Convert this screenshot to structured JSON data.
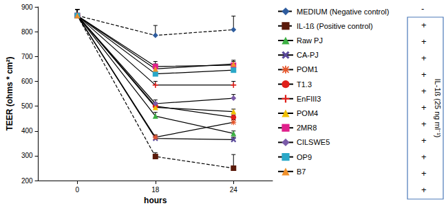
{
  "chart_data": {
    "type": "line",
    "x_label": "hours",
    "y_label": "TEER (ohms * cm²)",
    "categories": [
      0,
      18,
      24
    ],
    "ylim": [
      200,
      900
    ],
    "yticks": [
      200,
      300,
      400,
      500,
      600,
      700,
      800,
      900
    ],
    "grid": false,
    "legend": "right",
    "treatment_label": "IL-1ß (25 ng ml⁻¹)",
    "series": [
      {
        "name": "MEDIUM (Negative control)",
        "color": "#2e5c9e",
        "marker": "diamond",
        "line_style": "dashed",
        "treatment": "-",
        "values": [
          865,
          785,
          808
        ],
        "errors": [
          25,
          40,
          55
        ]
      },
      {
        "name": "IL-1ß (Positive control)",
        "color": "#5a1a0a",
        "marker": "square",
        "line_style": "dashed",
        "treatment": "+",
        "values": [
          865,
          297,
          250
        ],
        "errors": [
          25,
          15,
          55
        ]
      },
      {
        "name": "Raw PJ",
        "color": "#3cb043",
        "marker": "triangle",
        "line_style": "solid",
        "treatment": "+",
        "values": [
          865,
          460,
          390
        ],
        "errors": [
          25,
          15,
          10
        ]
      },
      {
        "name": "CA-PJ",
        "color": "#5b4a9b",
        "marker": "x",
        "line_style": "solid",
        "treatment": "+",
        "values": [
          865,
          370,
          365
        ],
        "errors": [
          25,
          10,
          10
        ]
      },
      {
        "name": "POM1",
        "color": "#e8562a",
        "marker": "asterisk",
        "line_style": "solid",
        "treatment": "+",
        "values": [
          865,
          375,
          435
        ],
        "errors": [
          25,
          10,
          10
        ]
      },
      {
        "name": "T1.3",
        "color": "#e0201b",
        "marker": "circle",
        "line_style": "solid",
        "treatment": "+",
        "values": [
          865,
          500,
          455
        ],
        "errors": [
          25,
          15,
          10
        ]
      },
      {
        "name": "EnFIII3",
        "color": "#e0201b",
        "marker": "plus",
        "line_style": "solid",
        "treatment": "+",
        "values": [
          865,
          585,
          585
        ],
        "errors": [
          25,
          15,
          15
        ]
      },
      {
        "name": "POM4",
        "color": "#f0c000",
        "marker": "triangle",
        "line_style": "solid",
        "treatment": "+",
        "values": [
          865,
          495,
          478
        ],
        "errors": [
          25,
          15,
          10
        ]
      },
      {
        "name": "2MR8",
        "color": "#e0208c",
        "marker": "dash",
        "line_style": "solid",
        "treatment": "+",
        "values": [
          865,
          660,
          665
        ],
        "errors": [
          25,
          20,
          15
        ]
      },
      {
        "name": "CILSWE5",
        "color": "#7a5aa8",
        "marker": "diamond",
        "line_style": "solid",
        "treatment": "+",
        "values": [
          865,
          510,
          532
        ],
        "errors": [
          25,
          15,
          15
        ]
      },
      {
        "name": "OP9",
        "color": "#2aa8c8",
        "marker": "square",
        "line_style": "solid",
        "treatment": "+",
        "values": [
          865,
          630,
          645
        ],
        "errors": [
          25,
          20,
          15
        ]
      },
      {
        "name": "B7",
        "color": "#f0902a",
        "marker": "triangle",
        "line_style": "solid",
        "treatment": "+",
        "values": [
          865,
          650,
          670
        ],
        "errors": [
          25,
          20,
          15
        ]
      }
    ]
  }
}
